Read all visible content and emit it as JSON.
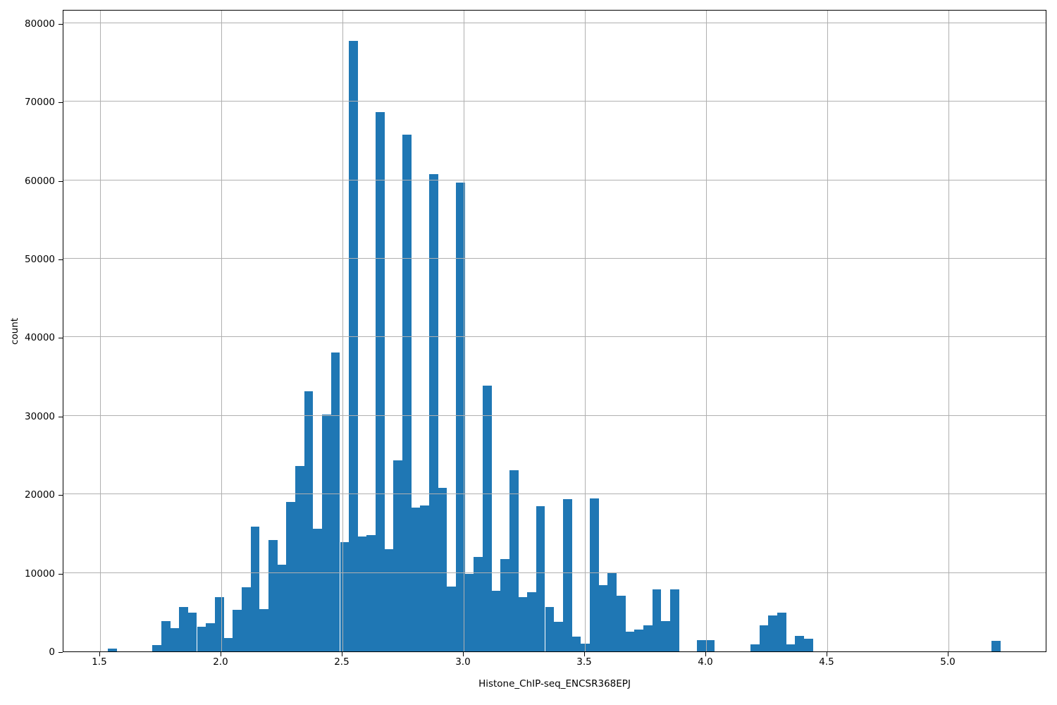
{
  "figure": {
    "background": "#ffffff",
    "bar_color": "#1f77b4",
    "grid_color": "#b0b0b0",
    "spine_color": "#000000",
    "text_color": "#000000"
  },
  "chart_data": {
    "type": "bar",
    "subtype": "histogram",
    "title": "",
    "xlabel": "Histone_ChIP-seq_ENCSR368EPJ",
    "ylabel": "count",
    "xlim": [
      1.349,
      5.407
    ],
    "ylim": [
      0,
      81780
    ],
    "grid": true,
    "legend": false,
    "bin_width": 0.0368,
    "x_ticks": [
      {
        "v": 1.5,
        "label": "1.5"
      },
      {
        "v": 2.0,
        "label": "2.0"
      },
      {
        "v": 2.5,
        "label": "2.5"
      },
      {
        "v": 3.0,
        "label": "3.0"
      },
      {
        "v": 3.5,
        "label": "3.5"
      },
      {
        "v": 4.0,
        "label": "4.0"
      },
      {
        "v": 4.5,
        "label": "4.5"
      },
      {
        "v": 5.0,
        "label": "5.0"
      }
    ],
    "y_ticks": [
      {
        "v": 0,
        "label": "0"
      },
      {
        "v": 10000,
        "label": "10000"
      },
      {
        "v": 20000,
        "label": "20000"
      },
      {
        "v": 30000,
        "label": "30000"
      },
      {
        "v": 40000,
        "label": "40000"
      },
      {
        "v": 50000,
        "label": "50000"
      },
      {
        "v": 60000,
        "label": "60000"
      },
      {
        "v": 70000,
        "label": "70000"
      },
      {
        "v": 80000,
        "label": "80000"
      }
    ],
    "bins": [
      [
        1.532,
        400
      ],
      [
        1.716,
        800
      ],
      [
        1.753,
        3900
      ],
      [
        1.79,
        3000
      ],
      [
        1.827,
        5700
      ],
      [
        1.863,
        4900
      ],
      [
        1.9,
        3100
      ],
      [
        1.937,
        3600
      ],
      [
        1.974,
        6900
      ],
      [
        2.011,
        1700
      ],
      [
        2.048,
        5300
      ],
      [
        2.084,
        8200
      ],
      [
        2.121,
        15900
      ],
      [
        2.158,
        5400
      ],
      [
        2.195,
        14200
      ],
      [
        2.232,
        11000
      ],
      [
        2.269,
        19000
      ],
      [
        2.305,
        23600
      ],
      [
        2.342,
        33100
      ],
      [
        2.379,
        15600
      ],
      [
        2.416,
        30200
      ],
      [
        2.453,
        38100
      ],
      [
        2.49,
        13900
      ],
      [
        2.526,
        77700
      ],
      [
        2.563,
        14600
      ],
      [
        2.6,
        14800
      ],
      [
        2.637,
        68700
      ],
      [
        2.674,
        13000
      ],
      [
        2.71,
        24300
      ],
      [
        2.747,
        65800
      ],
      [
        2.784,
        18300
      ],
      [
        2.821,
        18600
      ],
      [
        2.858,
        60800
      ],
      [
        2.895,
        20800
      ],
      [
        2.931,
        8300
      ],
      [
        2.968,
        59700
      ],
      [
        3.005,
        9900
      ],
      [
        3.042,
        12000
      ],
      [
        3.079,
        33800
      ],
      [
        3.115,
        7700
      ],
      [
        3.152,
        11800
      ],
      [
        3.189,
        23100
      ],
      [
        3.226,
        6900
      ],
      [
        3.263,
        7500
      ],
      [
        3.299,
        18500
      ],
      [
        3.336,
        5700
      ],
      [
        3.373,
        3800
      ],
      [
        3.41,
        19400
      ],
      [
        3.447,
        1900
      ],
      [
        3.484,
        1000
      ],
      [
        3.52,
        19500
      ],
      [
        3.557,
        8400
      ],
      [
        3.594,
        10100
      ],
      [
        3.631,
        7100
      ],
      [
        3.668,
        2500
      ],
      [
        3.705,
        2800
      ],
      [
        3.741,
        3300
      ],
      [
        3.778,
        7900
      ],
      [
        3.815,
        3900
      ],
      [
        3.852,
        7900
      ],
      [
        3.962,
        1450
      ],
      [
        3.999,
        1450
      ],
      [
        4.183,
        900
      ],
      [
        4.22,
        3300
      ],
      [
        4.257,
        4600
      ],
      [
        4.294,
        4900
      ],
      [
        4.331,
        900
      ],
      [
        4.367,
        2000
      ],
      [
        4.404,
        1600
      ],
      [
        5.178,
        1350
      ]
    ]
  }
}
